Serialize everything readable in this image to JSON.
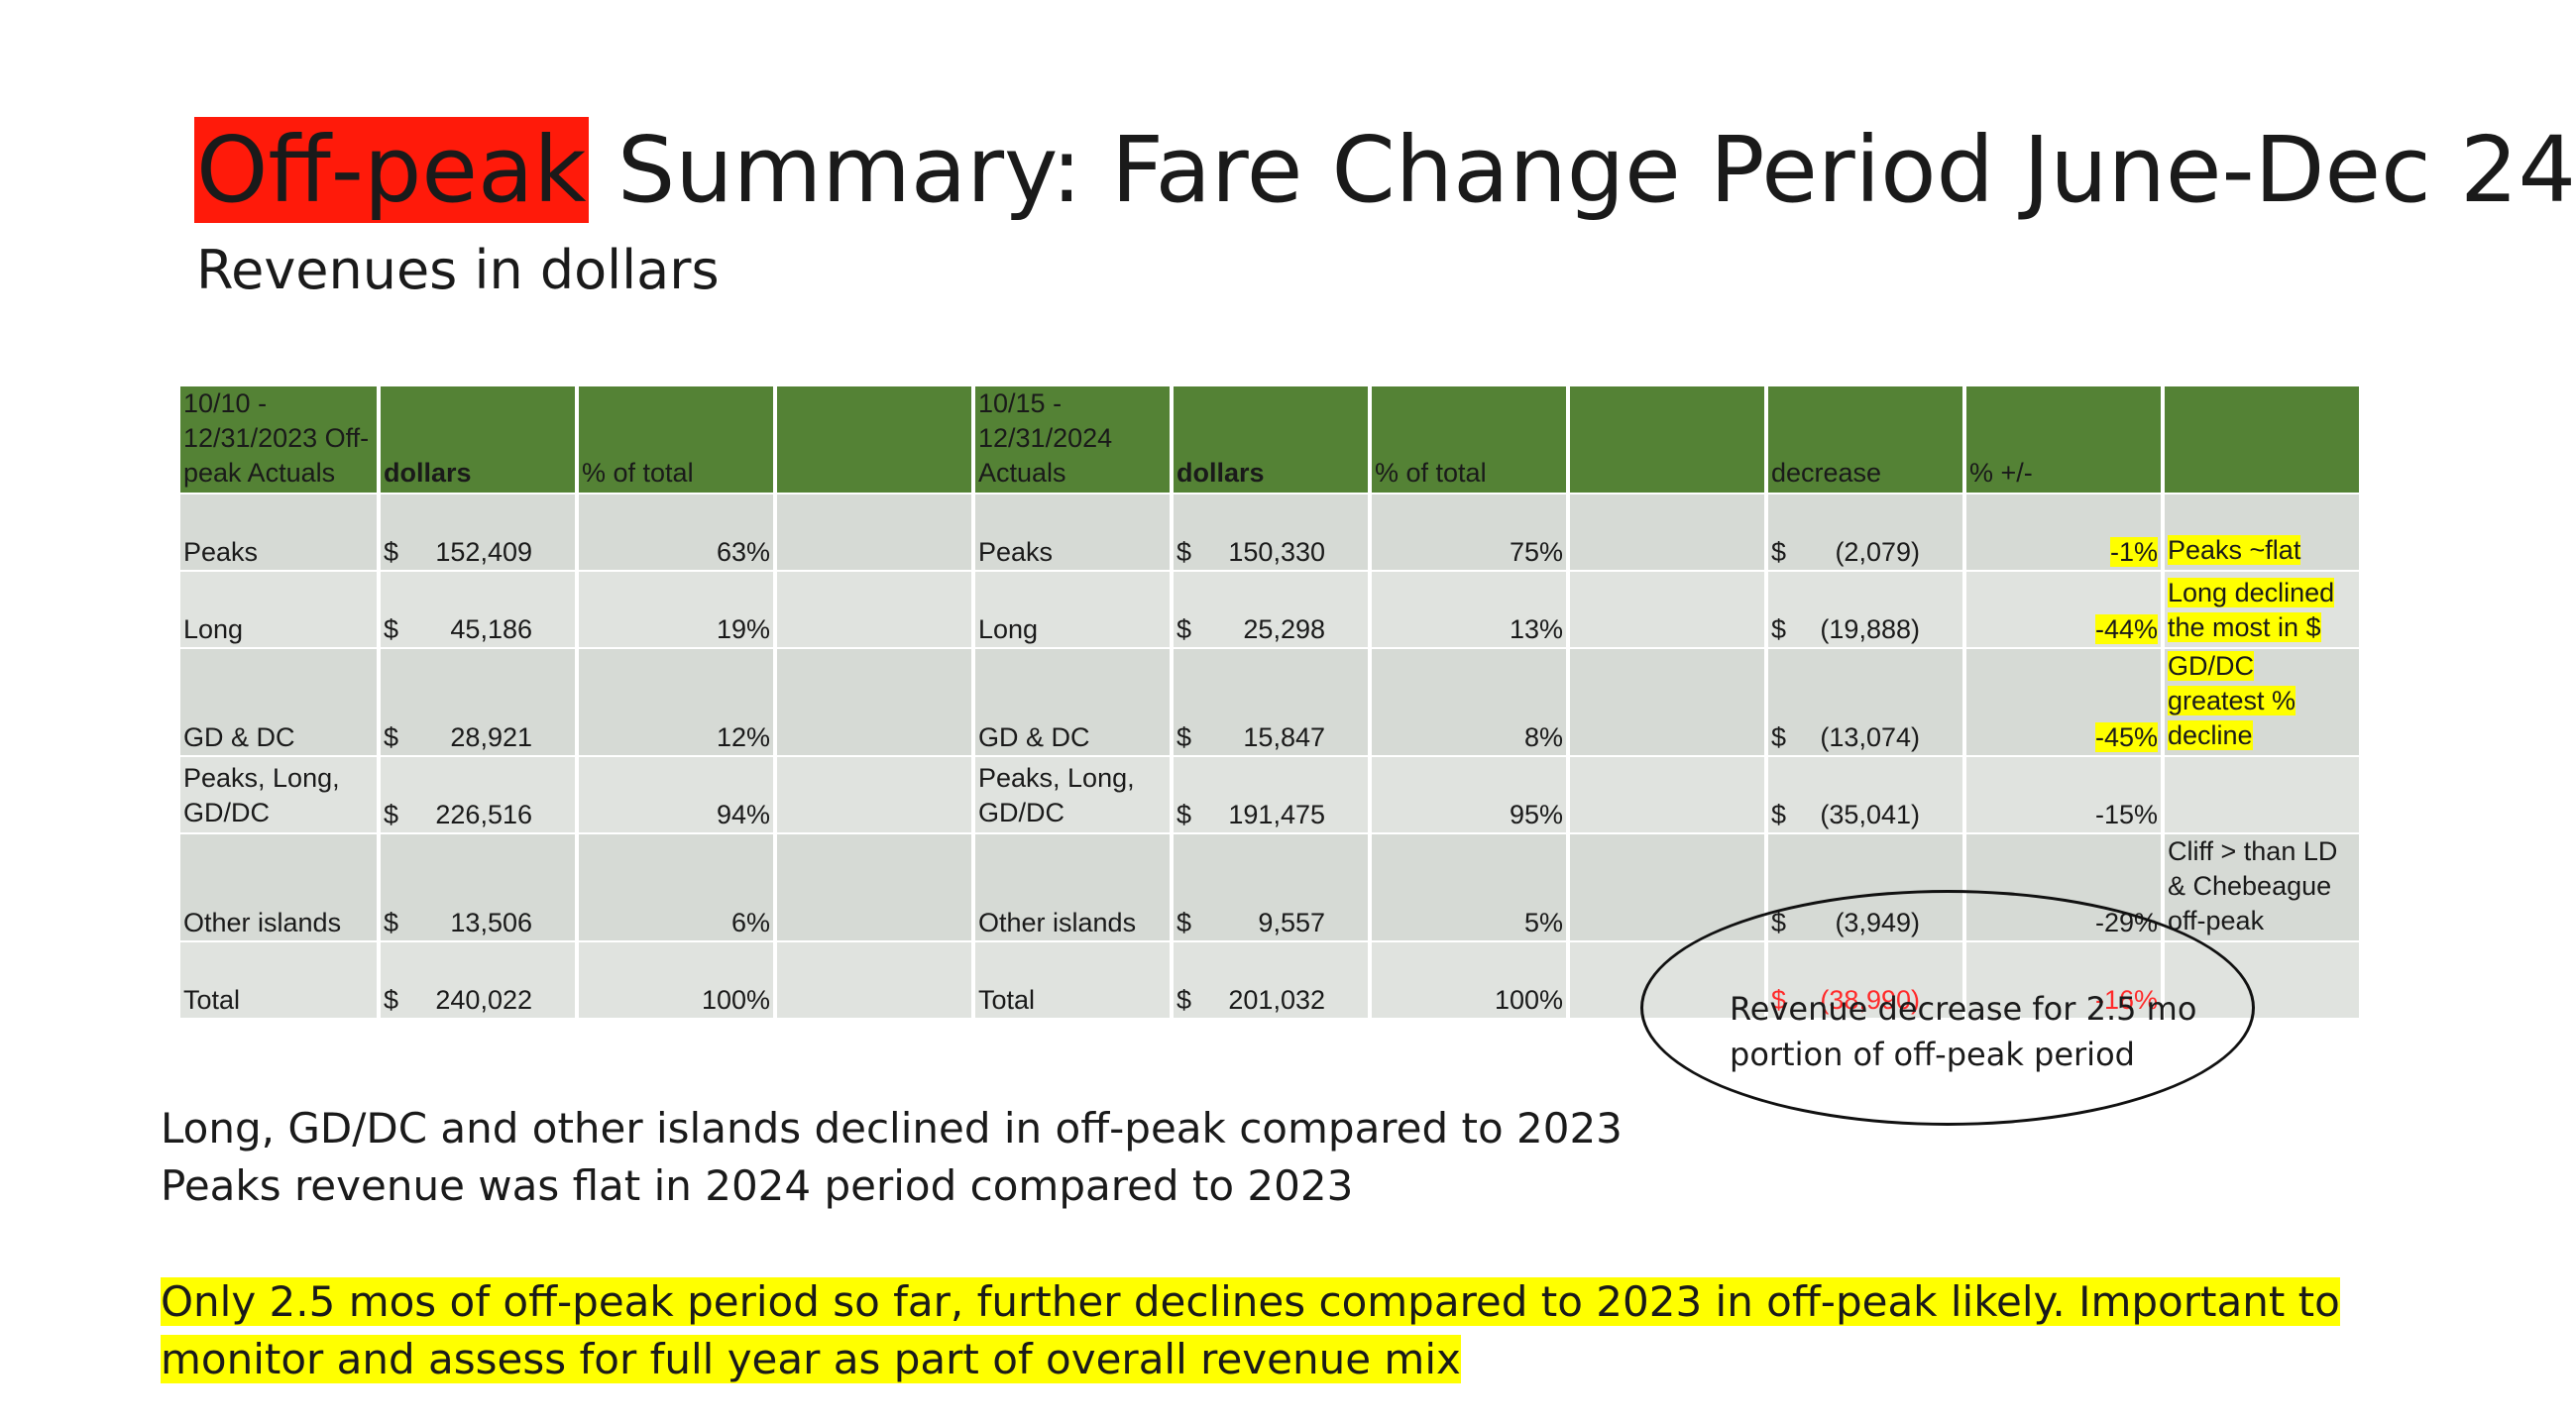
{
  "title": {
    "highlight": "Off-peak",
    "rest": " Summary: Fare Change Period June-Dec 24"
  },
  "subtitle": "Revenues in dollars",
  "table": {
    "headers": [
      "10/10 - 12/31/2023 Off-peak Actuals",
      "dollars",
      "% of total",
      "",
      "10/15 - 12/31/2024 Actuals",
      "dollars",
      "% of total",
      "",
      "decrease",
      "% +/-",
      ""
    ],
    "rows": [
      {
        "label_a": "Peaks",
        "dollars_a": "152,409",
        "pct_a": "63%",
        "label_b": "Peaks",
        "dollars_b": "150,330",
        "pct_b": "75%",
        "decrease": "(2,079)",
        "change": "-1%",
        "note": "Peaks ~flat"
      },
      {
        "label_a": "Long",
        "dollars_a": "45,186",
        "pct_a": "19%",
        "label_b": "Long",
        "dollars_b": "25,298",
        "pct_b": "13%",
        "decrease": "(19,888)",
        "change": "-44%",
        "note": "Long declined the most in $"
      },
      {
        "label_a": "GD & DC",
        "dollars_a": "28,921",
        "pct_a": "12%",
        "label_b": "GD & DC",
        "dollars_b": "15,847",
        "pct_b": "8%",
        "decrease": "(13,074)",
        "change": "-45%",
        "note": "GD/DC greatest % decline"
      },
      {
        "label_a": "Peaks, Long, GD/DC",
        "dollars_a": "226,516",
        "pct_a": "94%",
        "label_b": "Peaks, Long, GD/DC",
        "dollars_b": "191,475",
        "pct_b": "95%",
        "decrease": "(35,041)",
        "change": "-15%",
        "note": ""
      },
      {
        "label_a": "Other islands",
        "dollars_a": "13,506",
        "pct_a": "6%",
        "label_b": "Other islands",
        "dollars_b": "9,557",
        "pct_b": "5%",
        "decrease": "(3,949)",
        "change": "-29%",
        "note": "Cliff > than LD & Chebeague off-peak"
      },
      {
        "label_a": "Total",
        "dollars_a": "240,022",
        "pct_a": "100%",
        "label_b": "Total",
        "dollars_b": "201,032",
        "pct_b": "100%",
        "decrease": "(38,990)",
        "change": "-16%",
        "note": ""
      }
    ],
    "currency": "$"
  },
  "callout": "Revenue decrease for 2.5 mo portion of off-peak period",
  "body_lines": [
    "Long, GD/DC and other islands declined in off-peak compared to 2023",
    "Peaks revenue was flat in 2024 period compared to 2023"
  ],
  "highlight_note": "Only 2.5 mos of off-peak period so far, further declines compared to 2023 in off-peak likely. Important to monitor and assess for full year as part of overall revenue mix",
  "colors": {
    "header_green": "#548235",
    "title_highlight": "#ff1a0a",
    "note_highlight": "#ffff00",
    "total_red": "#ff2a2a"
  }
}
